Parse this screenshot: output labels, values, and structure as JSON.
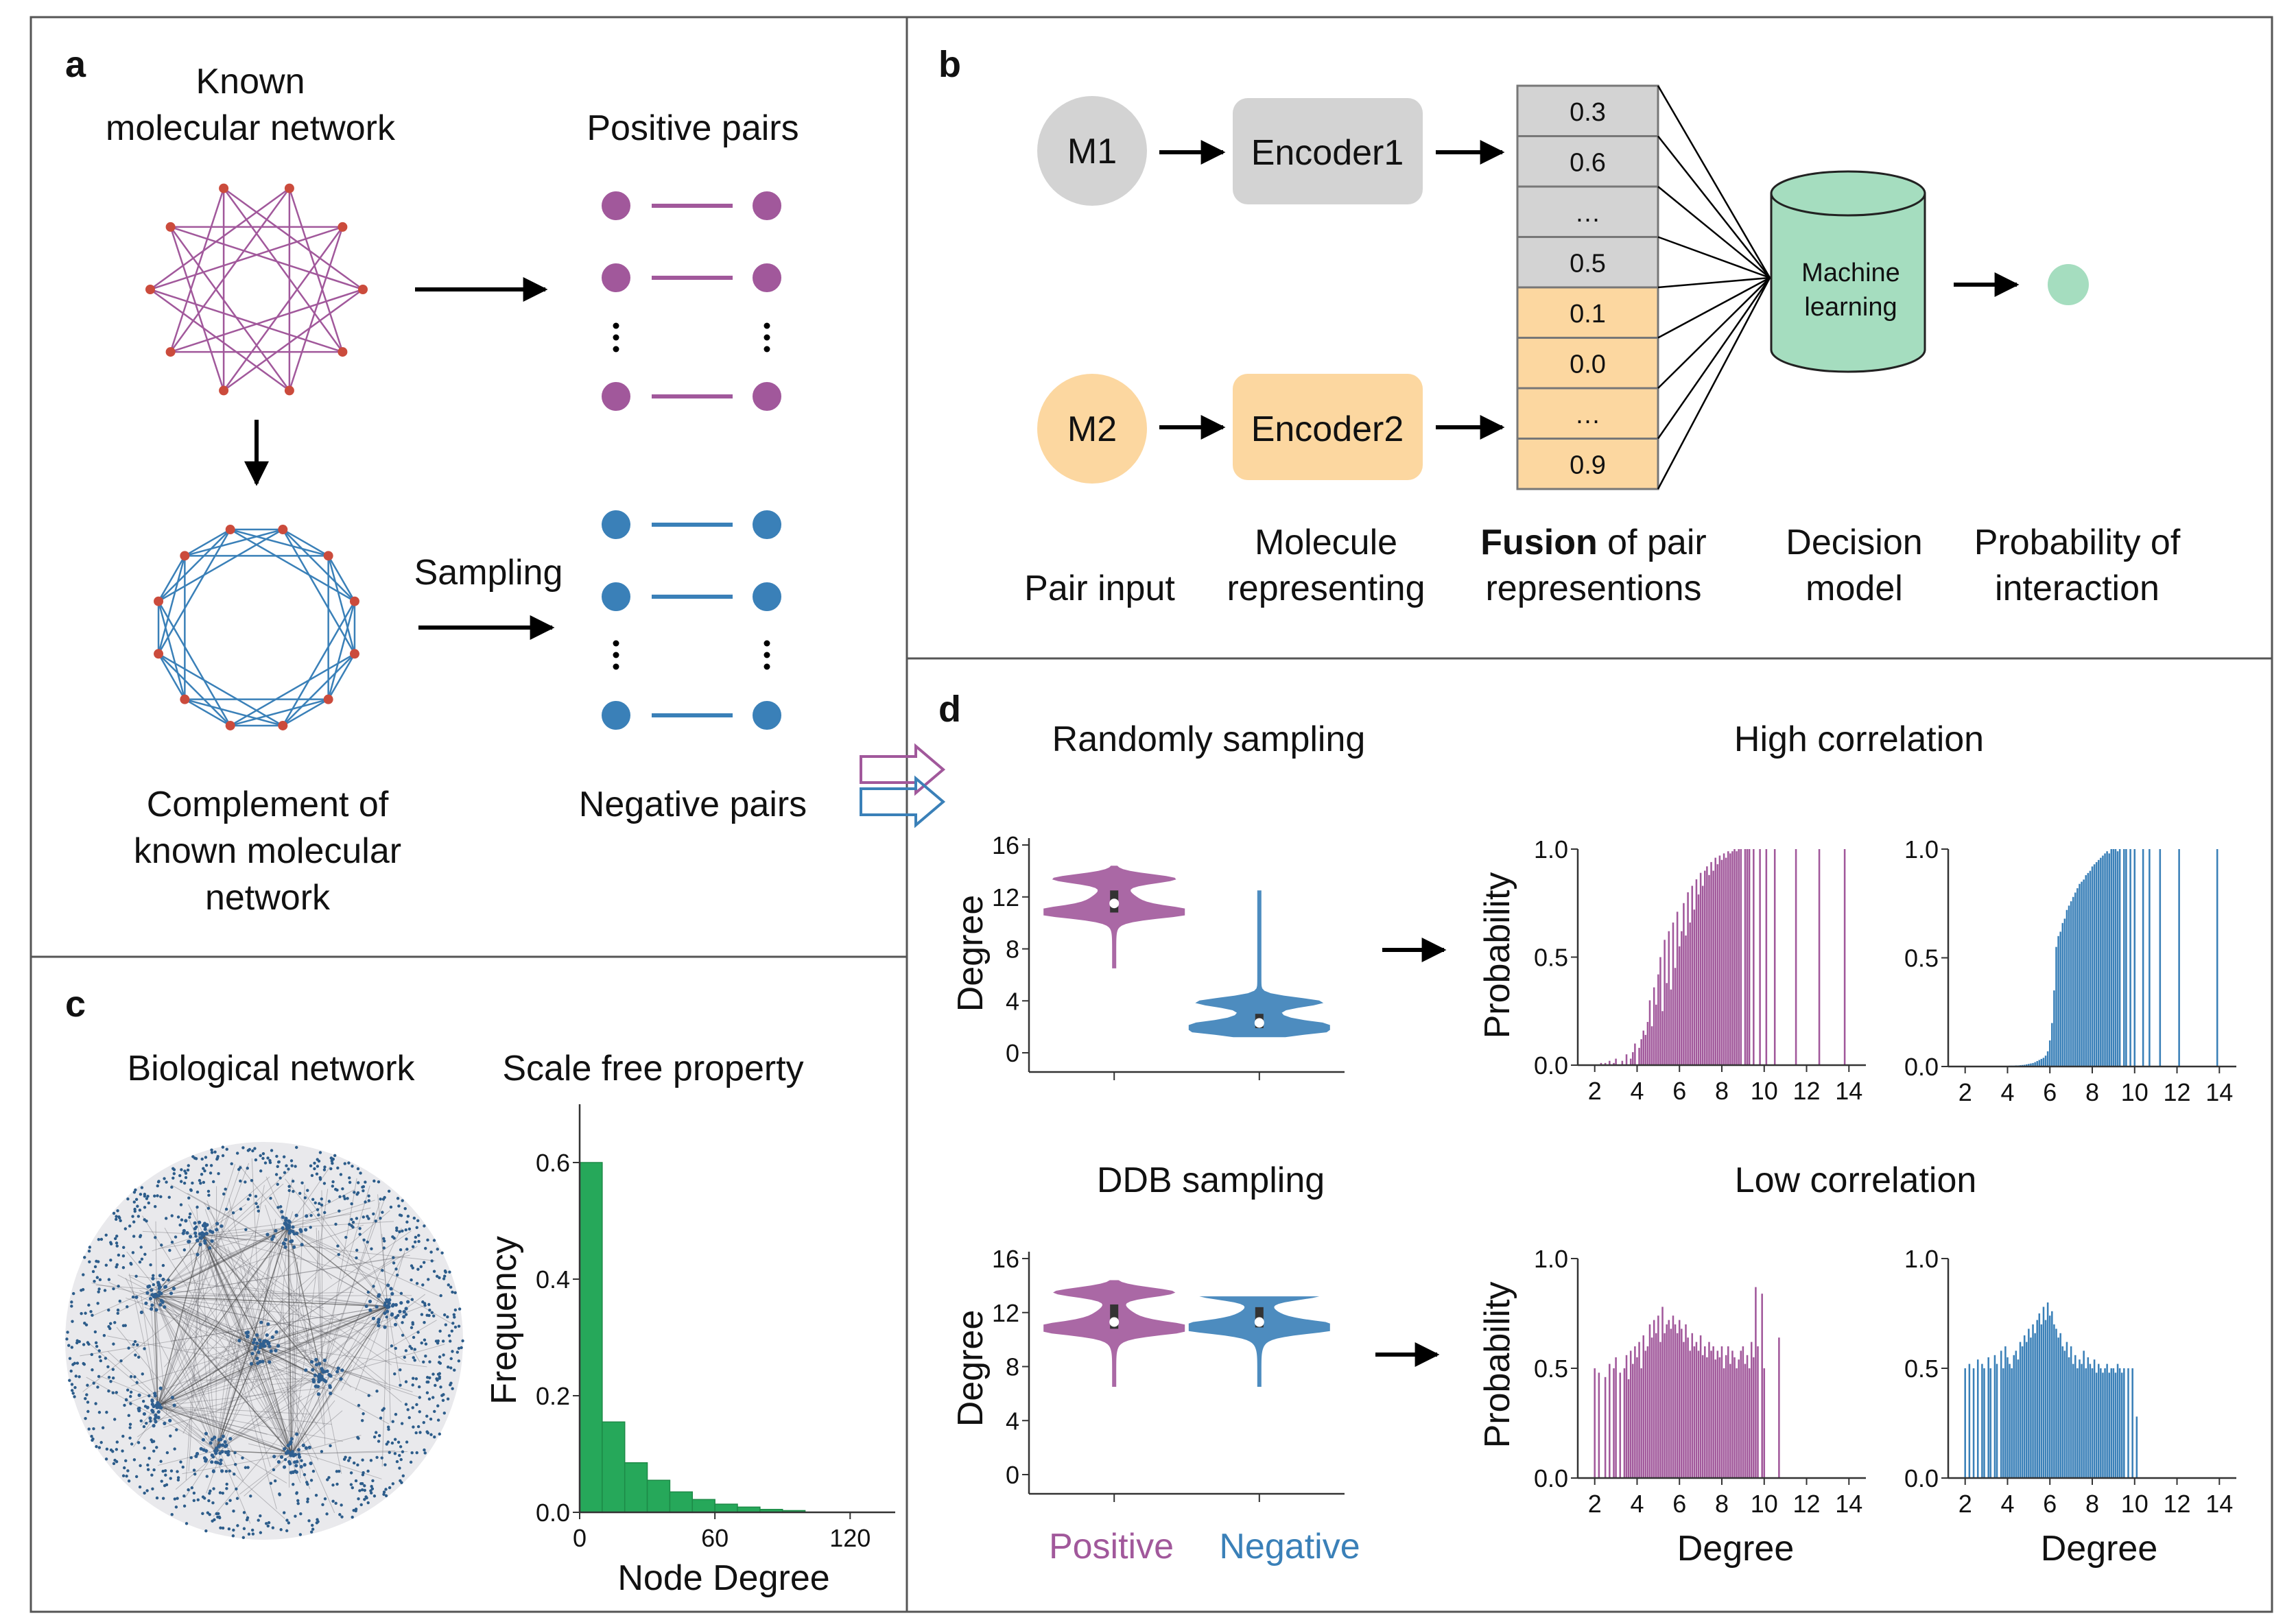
{
  "colors": {
    "purple": "#a1589b",
    "blue": "#3a80b8",
    "green": "#26a85a",
    "grey": "#d3d3d3",
    "orange": "#fcd7a0",
    "teal": "#a5ddbf",
    "node_red": "#cb4b3c"
  },
  "panel_a": {
    "label": "a",
    "known_line1": "Known",
    "known_line2": "molecular network",
    "positive_pairs": "Positive pairs",
    "sampling": "Sampling",
    "complement_line1": "Complement of",
    "complement_line2": "known molecular",
    "complement_line3": "network",
    "negative_pairs": "Negative pairs"
  },
  "panel_b": {
    "label": "b",
    "m1": "M1",
    "m2": "M2",
    "encoder1": "Encoder1",
    "encoder2": "Encoder2",
    "vector": [
      "0.3",
      "0.6",
      "…",
      "0.5",
      "0.1",
      "0.0",
      "…",
      "0.9"
    ],
    "ml_line1": "Machine",
    "ml_line2": "learning",
    "cap_pair_input": "Pair input",
    "cap_mol_1": "Molecule",
    "cap_mol_2": "representing",
    "cap_fusion_bold": "Fusion",
    "cap_fusion_rest": " of pair",
    "cap_fusion_2": "representions",
    "cap_decision_1": "Decision",
    "cap_decision_2": "model",
    "cap_prob_1": "Probability of",
    "cap_prob_2": "interaction"
  },
  "panel_c": {
    "label": "c",
    "bio_title": "Biological network",
    "sf_title": "Scale free property",
    "ylabel": "Frequency",
    "xlabel": "Node Degree"
  },
  "panel_d": {
    "label": "d",
    "random_title": "Randomly sampling",
    "high_title": "High correlation",
    "ddb_title": "DDB sampling",
    "low_title": "Low correlation",
    "violin_ylabel": "Degree",
    "prob_ylabel": "Probability",
    "degree_xlabel": "Degree",
    "legend_positive": "Positive",
    "legend_negative": "Negative"
  },
  "chart_data": [
    {
      "type": "bar",
      "title": "Scale free property",
      "xlabel": "Node Degree",
      "ylabel": "Frequency",
      "bin_width": 10,
      "x": [
        0,
        10,
        20,
        30,
        40,
        50,
        60,
        70,
        80,
        90
      ],
      "values": [
        0.6,
        0.155,
        0.085,
        0.055,
        0.035,
        0.022,
        0.014,
        0.009,
        0.005,
        0.003
      ],
      "xlim": [
        0,
        140
      ],
      "ylim": [
        0,
        0.7
      ],
      "xticks": [
        "0",
        "60",
        "120"
      ],
      "yticks": [
        "0.0",
        "0.2",
        "0.4",
        "0.6"
      ]
    },
    {
      "type": "violin",
      "title": "Randomly sampling",
      "ylabel": "Degree",
      "ylim": [
        0,
        16
      ],
      "yticks": [
        "0",
        "4",
        "8",
        "12",
        "16"
      ],
      "series": [
        {
          "name": "Positive",
          "min": 6.5,
          "max": 14.4,
          "median": 11.5,
          "q1": 10.8,
          "q3": 12.5
        },
        {
          "name": "Negative",
          "min": 1.2,
          "max": 12.5,
          "median": 2.3,
          "q1": 1.9,
          "q3": 3.0
        }
      ]
    },
    {
      "type": "violin",
      "title": "DDB sampling",
      "ylabel": "Degree",
      "ylim": [
        0,
        16
      ],
      "yticks": [
        "0",
        "4",
        "8",
        "12",
        "16"
      ],
      "series": [
        {
          "name": "Positive",
          "min": 6.5,
          "max": 14.4,
          "median": 11.3,
          "q1": 10.8,
          "q3": 12.6
        },
        {
          "name": "Negative",
          "min": 6.5,
          "max": 13.2,
          "median": 11.3,
          "q1": 10.9,
          "q3": 12.4
        }
      ]
    },
    {
      "type": "bar",
      "title": "High correlation",
      "series_name": "Positive",
      "xlabel": "",
      "ylabel": "Probability",
      "x_start": 2.0,
      "x_step": 0.1,
      "values": [
        0.0,
        0.0,
        0.0,
        0.01,
        0.0,
        0.01,
        0.0,
        0.02,
        0.0,
        0.01,
        0.03,
        0.0,
        0.0,
        0.02,
        0.0,
        0.05,
        0.0,
        0.03,
        0.06,
        0.1,
        0.0,
        0.08,
        0.12,
        0.16,
        0.14,
        0.2,
        0.3,
        0.18,
        0.36,
        0.28,
        0.42,
        0.5,
        0.25,
        0.58,
        0.38,
        0.62,
        0.35,
        0.66,
        0.45,
        0.71,
        0.55,
        0.62,
        0.75,
        0.6,
        0.8,
        0.66,
        0.83,
        0.72,
        0.86,
        0.79,
        0.89,
        0.83,
        0.9,
        0.92,
        0.88,
        0.94,
        0.9,
        0.96,
        0.93,
        0.97,
        0.95,
        0.98,
        0.96,
        0.99,
        0.98,
        0.99,
        1.0,
        0.99,
        1.0,
        1.0,
        0.0,
        1.0,
        1.0,
        1.0,
        0.0,
        1.0,
        0.0,
        0.0,
        1.0,
        0.0,
        0.0,
        1.0,
        0.0,
        0.0,
        0.0,
        1.0,
        0.0,
        0.0,
        0.0,
        0.0,
        0.0,
        0.0,
        0.0,
        0.0,
        0.0,
        1.0,
        0.0,
        0.0,
        0.0,
        0.0,
        0.0,
        0.0,
        0.0,
        0.0,
        0.0,
        0.0,
        1.0,
        0.0,
        0.0,
        0.0,
        0.0,
        0.0,
        0.0,
        0.0,
        0.0,
        0.0,
        0.0,
        0.0,
        1.0
      ],
      "xlim": [
        1.2,
        14.8
      ],
      "ylim": [
        0,
        1.0
      ],
      "xticks": [
        "2",
        "4",
        "6",
        "8",
        "10",
        "12",
        "14"
      ],
      "yticks": [
        "0.0",
        "0.5",
        "1.0"
      ]
    },
    {
      "type": "bar",
      "title": "High correlation",
      "series_name": "Negative",
      "xlabel": "",
      "ylabel": "Probability",
      "x_start": 2.0,
      "x_step": 0.1,
      "values": [
        0.002,
        0.002,
        0.002,
        0.002,
        0.002,
        0.002,
        0.002,
        0.002,
        0.002,
        0.002,
        0.002,
        0.002,
        0.002,
        0.002,
        0.002,
        0.002,
        0.002,
        0.002,
        0.002,
        0.003,
        0.003,
        0.004,
        0.004,
        0.004,
        0.005,
        0.005,
        0.006,
        0.007,
        0.008,
        0.01,
        0.012,
        0.014,
        0.016,
        0.02,
        0.025,
        0.03,
        0.035,
        0.04,
        0.05,
        0.07,
        0.12,
        0.2,
        0.35,
        0.55,
        0.6,
        0.62,
        0.66,
        0.68,
        0.72,
        0.74,
        0.76,
        0.78,
        0.8,
        0.82,
        0.84,
        0.85,
        0.86,
        0.88,
        0.89,
        0.9,
        0.92,
        0.93,
        0.94,
        0.95,
        0.96,
        0.97,
        0.98,
        0.99,
        0.98,
        1.0,
        1.0,
        1.0,
        0.99,
        1.0,
        0.0,
        1.0,
        1.0,
        0.0,
        1.0,
        0.0,
        1.0,
        0.0,
        0.0,
        0.0,
        1.0,
        0.0,
        0.0,
        1.0,
        0.0,
        0.0,
        0.0,
        0.0,
        1.0,
        0.0,
        0.0,
        0.0,
        0.0,
        0.0,
        0.0,
        0.0,
        0.0,
        1.0,
        0.0,
        0.0,
        0.0,
        0.0,
        0.0,
        0.0,
        0.0,
        0.0,
        0.0,
        0.0,
        0.0,
        0.0,
        0.0,
        0.0,
        0.0,
        0.0,
        0.0,
        1.0
      ],
      "xlim": [
        1.2,
        14.8
      ],
      "ylim": [
        0,
        1.0
      ],
      "xticks": [
        "2",
        "4",
        "6",
        "8",
        "10",
        "12",
        "14"
      ],
      "yticks": [
        "0.0",
        "0.5",
        "1.0"
      ]
    },
    {
      "type": "bar",
      "title": "Low correlation",
      "series_name": "Positive",
      "xlabel": "Degree",
      "ylabel": "Probability",
      "x_start": 2.0,
      "x_step": 0.1,
      "values": [
        0.5,
        0.0,
        0.48,
        0.0,
        0.0,
        0.46,
        0.0,
        0.52,
        0.0,
        0.5,
        0.55,
        0.0,
        0.48,
        0.0,
        0.5,
        0.56,
        0.45,
        0.58,
        0.52,
        0.6,
        0.55,
        0.62,
        0.5,
        0.65,
        0.58,
        0.6,
        0.7,
        0.64,
        0.72,
        0.66,
        0.74,
        0.62,
        0.78,
        0.66,
        0.7,
        0.72,
        0.68,
        0.74,
        0.7,
        0.66,
        0.72,
        0.68,
        0.62,
        0.7,
        0.64,
        0.58,
        0.66,
        0.6,
        0.62,
        0.58,
        0.65,
        0.56,
        0.6,
        0.55,
        0.62,
        0.58,
        0.6,
        0.54,
        0.58,
        0.55,
        0.6,
        0.5,
        0.56,
        0.6,
        0.52,
        0.58,
        0.55,
        0.5,
        0.54,
        0.58,
        0.6,
        0.52,
        0.56,
        0.5,
        0.62,
        0.55,
        0.87,
        0.6,
        0.0,
        0.84,
        0.5,
        0.0,
        0.0,
        0.0,
        0.0,
        0.0,
        0.0,
        0.64
      ],
      "xlim": [
        1.2,
        14.8
      ],
      "ylim": [
        0,
        1.0
      ],
      "xticks": [
        "2",
        "4",
        "6",
        "8",
        "10",
        "12",
        "14"
      ],
      "yticks": [
        "0.0",
        "0.5",
        "1.0"
      ]
    },
    {
      "type": "bar",
      "title": "Low correlation",
      "series_name": "Negative",
      "xlabel": "Degree",
      "ylabel": "Probability",
      "x_start": 2.0,
      "x_step": 0.1,
      "values": [
        0.5,
        0.0,
        0.52,
        0.0,
        0.5,
        0.0,
        0.54,
        0.0,
        0.52,
        0.5,
        0.0,
        0.55,
        0.5,
        0.0,
        0.56,
        0.52,
        0.0,
        0.58,
        0.5,
        0.6,
        0.55,
        0.52,
        0.5,
        0.56,
        0.58,
        0.54,
        0.62,
        0.6,
        0.65,
        0.62,
        0.68,
        0.64,
        0.7,
        0.66,
        0.72,
        0.75,
        0.7,
        0.78,
        0.72,
        0.8,
        0.74,
        0.76,
        0.7,
        0.68,
        0.64,
        0.66,
        0.6,
        0.58,
        0.62,
        0.55,
        0.6,
        0.52,
        0.56,
        0.5,
        0.54,
        0.52,
        0.58,
        0.5,
        0.55,
        0.52,
        0.5,
        0.54,
        0.48,
        0.52,
        0.5,
        0.48,
        0.5,
        0.52,
        0.48,
        0.5,
        0.5,
        0.48,
        0.52,
        0.5,
        0.48,
        0.5,
        0.0,
        0.5,
        0.0,
        0.5,
        0.0,
        0.28
      ],
      "xlim": [
        1.2,
        14.8
      ],
      "ylim": [
        0,
        1.0
      ],
      "xticks": [
        "2",
        "4",
        "6",
        "8",
        "10",
        "12",
        "14"
      ],
      "yticks": [
        "0.0",
        "0.5",
        "1.0"
      ]
    }
  ]
}
